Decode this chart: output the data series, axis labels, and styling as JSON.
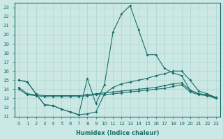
{
  "xlabel": "Humidex (Indice chaleur)",
  "xlim": [
    -0.5,
    23.5
  ],
  "ylim": [
    11,
    23.5
  ],
  "yticks": [
    11,
    12,
    13,
    14,
    15,
    16,
    17,
    18,
    19,
    20,
    21,
    22,
    23
  ],
  "xticks": [
    0,
    1,
    2,
    3,
    4,
    5,
    6,
    7,
    8,
    9,
    10,
    11,
    12,
    13,
    14,
    15,
    16,
    17,
    18,
    19,
    20,
    21,
    22,
    23
  ],
  "bg_color": "#cce8e4",
  "line_color": "#1a6e6a",
  "grid_color": "#aed4cf",
  "lines": [
    {
      "x": [
        0,
        1,
        2,
        3,
        4,
        5,
        6,
        7,
        8,
        9,
        10,
        11,
        12,
        13,
        14,
        15,
        16,
        17,
        18,
        19,
        20,
        21,
        22,
        23
      ],
      "y": [
        15.0,
        14.8,
        13.5,
        12.3,
        12.2,
        11.8,
        11.5,
        11.2,
        15.2,
        12.4,
        14.5,
        20.3,
        22.3,
        23.2,
        20.5,
        17.8,
        17.8,
        16.3,
        15.8,
        15.5,
        13.9,
        13.5,
        13.4,
        13.0
      ]
    },
    {
      "x": [
        0,
        1,
        2,
        3,
        4,
        5,
        6,
        7,
        8,
        9,
        10,
        11,
        12,
        13,
        14,
        15,
        16,
        17,
        18,
        19,
        20,
        21,
        22,
        23
      ],
      "y": [
        15.0,
        14.8,
        13.5,
        12.3,
        12.2,
        11.8,
        11.5,
        11.2,
        11.3,
        11.5,
        13.5,
        14.2,
        14.6,
        14.8,
        15.0,
        15.2,
        15.5,
        15.7,
        16.0,
        16.0,
        15.0,
        13.8,
        13.5,
        13.1
      ]
    },
    {
      "x": [
        0,
        1,
        2,
        3,
        4,
        5,
        6,
        7,
        8,
        9,
        10,
        11,
        12,
        13,
        14,
        15,
        16,
        17,
        18,
        19,
        20,
        21,
        22,
        23
      ],
      "y": [
        14.2,
        13.5,
        13.4,
        13.3,
        13.3,
        13.3,
        13.3,
        13.3,
        13.4,
        13.5,
        13.6,
        13.7,
        13.8,
        13.9,
        14.0,
        14.1,
        14.2,
        14.4,
        14.6,
        14.7,
        13.9,
        13.5,
        13.4,
        13.1
      ]
    },
    {
      "x": [
        0,
        1,
        2,
        3,
        4,
        5,
        6,
        7,
        8,
        9,
        10,
        11,
        12,
        13,
        14,
        15,
        16,
        17,
        18,
        19,
        20,
        21,
        22,
        23
      ],
      "y": [
        14.0,
        13.4,
        13.3,
        13.2,
        13.2,
        13.2,
        13.2,
        13.2,
        13.3,
        13.4,
        13.4,
        13.5,
        13.6,
        13.7,
        13.8,
        13.9,
        14.0,
        14.1,
        14.3,
        14.5,
        13.7,
        13.4,
        13.3,
        13.0
      ]
    }
  ]
}
